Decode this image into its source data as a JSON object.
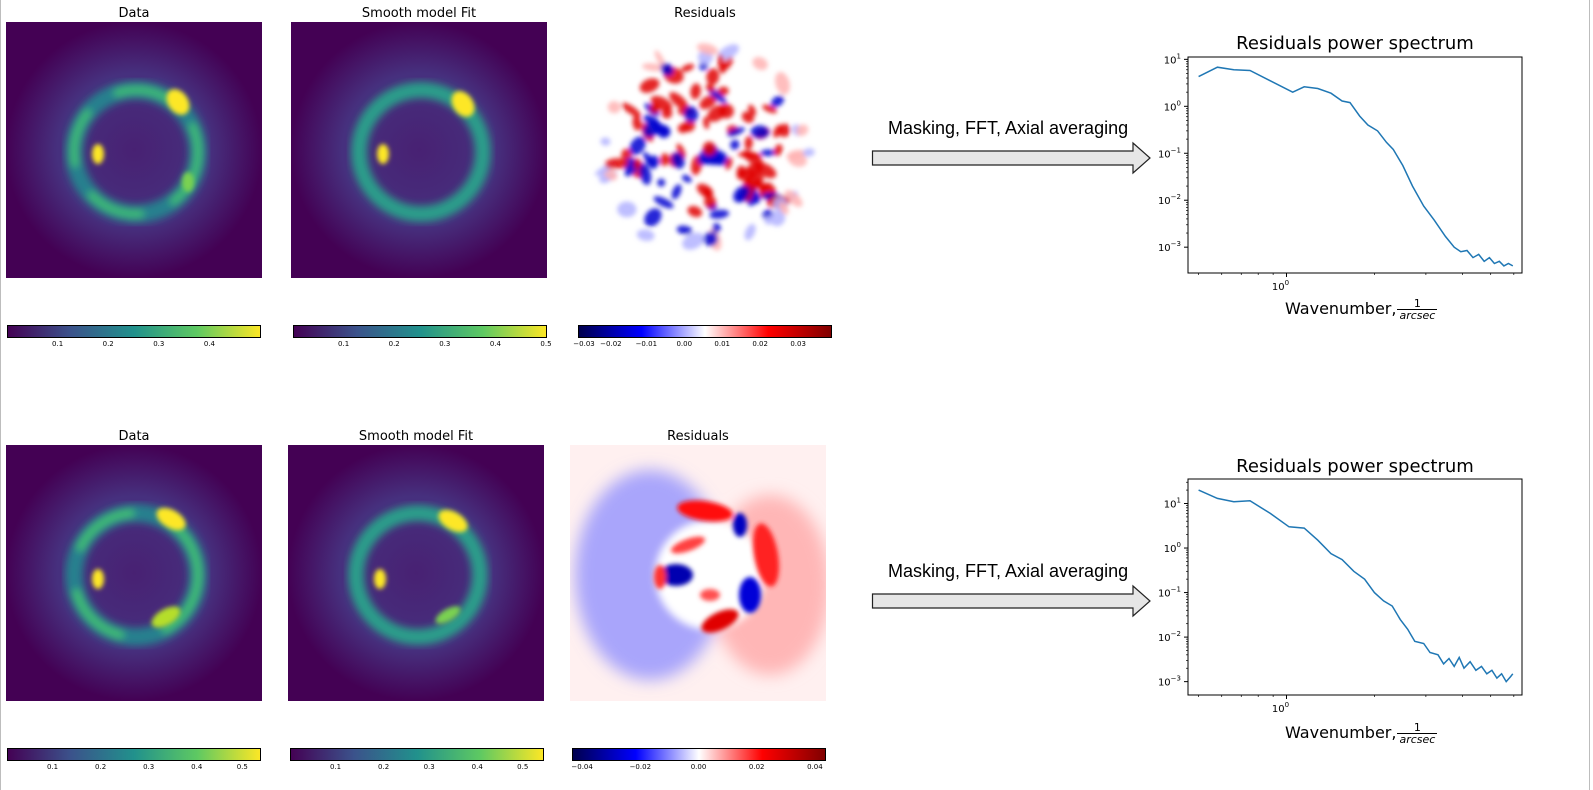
{
  "rows": [
    {
      "panels": [
        {
          "title": "Data",
          "ticks": [
            "0.1",
            "0.2",
            "0.3",
            "0.4"
          ]
        },
        {
          "title": "Smooth model Fit",
          "ticks": [
            "0.1",
            "0.2",
            "0.3",
            "0.4",
            "0.5"
          ]
        },
        {
          "title": "Residuals",
          "ticks": [
            "−0.03",
            "−0.02",
            "−0.01",
            "0.00",
            "0.01",
            "0.02",
            "0.03"
          ]
        }
      ],
      "arrow_label": "Masking, FFT, Axial averaging",
      "spectrum": {
        "title": "Residuals power spectrum",
        "yticks": [
          {
            "base": "10",
            "exp": "1"
          },
          {
            "base": "10",
            "exp": "0"
          },
          {
            "base": "10",
            "exp": "−1"
          },
          {
            "base": "10",
            "exp": "−2"
          },
          {
            "base": "10",
            "exp": "−3"
          }
        ],
        "xtick": {
          "base": "10",
          "exp": "0"
        },
        "xlabel": "Wavenumber,",
        "xlabel_num": "1",
        "xlabel_den": "arcsec"
      }
    },
    {
      "panels": [
        {
          "title": "Data",
          "ticks": [
            "0.1",
            "0.2",
            "0.3",
            "0.4",
            "0.5"
          ]
        },
        {
          "title": "Smooth model Fit",
          "ticks": [
            "0.1",
            "0.2",
            "0.3",
            "0.4",
            "0.5"
          ]
        },
        {
          "title": "Residuals",
          "ticks": [
            "−0.04",
            "−0.02",
            "0.00",
            "0.02",
            "0.04"
          ]
        }
      ],
      "arrow_label": "Masking, FFT, Axial averaging",
      "spectrum": {
        "title": "Residuals power spectrum",
        "yticks": [
          {
            "base": "10",
            "exp": "1"
          },
          {
            "base": "10",
            "exp": "0"
          },
          {
            "base": "10",
            "exp": "−1"
          },
          {
            "base": "10",
            "exp": "−2"
          },
          {
            "base": "10",
            "exp": "−3"
          }
        ],
        "xtick": {
          "base": "10",
          "exp": "0"
        },
        "xlabel": "Wavenumber,",
        "xlabel_num": "1",
        "xlabel_den": "arcsec"
      }
    }
  ],
  "colors": {
    "viridis_dark": "#440154",
    "viridis_mid": "#21918c",
    "viridis_bright": "#fde725",
    "seismic_neg": "#00004c",
    "seismic_pos": "#7f0000",
    "line": "#1f77b4"
  }
}
